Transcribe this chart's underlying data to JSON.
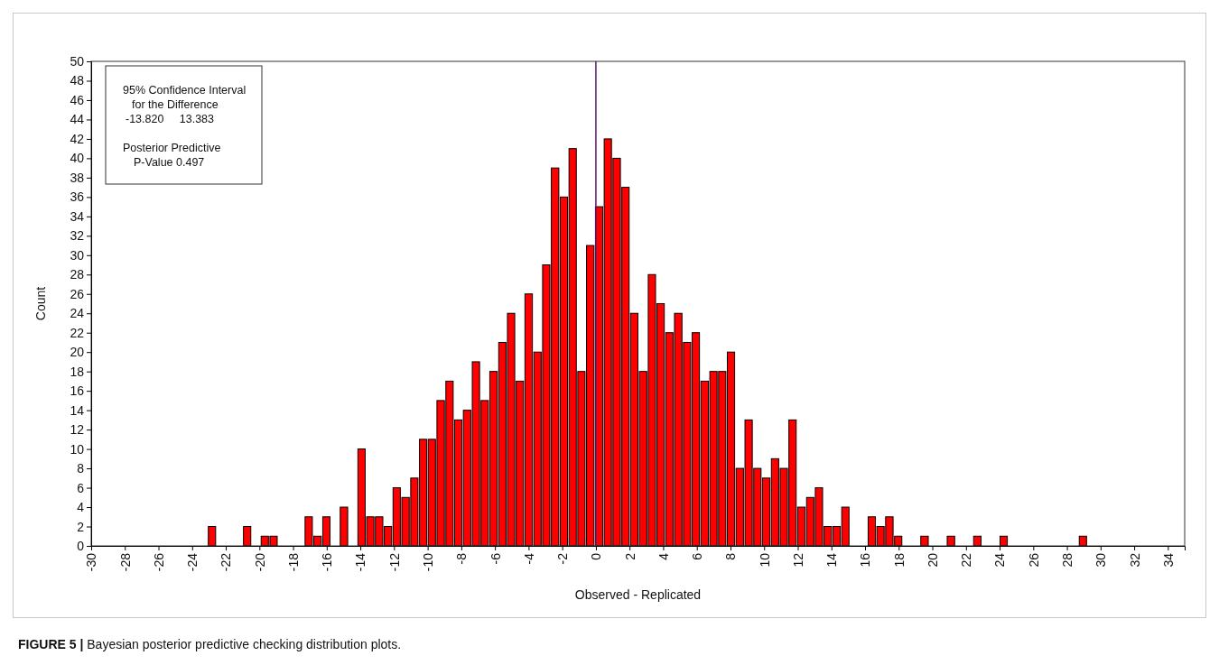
{
  "chart_data": {
    "type": "histogram",
    "xlabel": "Observed - Replicated",
    "ylabel": "Count",
    "bins": [
      -23.08,
      -22.56,
      -22.03,
      -21.51,
      -20.99,
      -20.47,
      -19.94,
      -19.42,
      -18.9,
      -18.37,
      -17.85,
      -17.33,
      -16.81,
      -16.28,
      -15.76,
      -15.24,
      -14.71,
      -14.19,
      -13.67,
      -13.15,
      -12.62,
      -12.1,
      -11.58,
      -11.05,
      -10.53,
      -10.01,
      -9.49,
      -8.96,
      -8.44,
      -7.92,
      -7.39,
      -6.87,
      -6.35,
      -5.82,
      -5.3,
      -4.78,
      -4.26,
      -3.73,
      -3.21,
      -2.69,
      -2.16,
      -1.64,
      -1.12,
      -0.6,
      -0.07,
      0.45,
      0.97,
      1.5,
      2.02,
      2.54,
      3.07,
      3.59,
      4.11,
      4.63,
      5.16,
      5.68,
      6.2,
      6.73,
      7.25,
      7.77,
      8.29,
      8.82,
      9.34,
      9.86,
      10.39,
      10.91,
      11.43,
      11.95,
      12.48,
      13.0,
      13.52,
      14.05,
      14.57,
      15.09,
      15.62,
      16.14,
      16.66,
      17.18,
      17.71,
      18.23,
      18.75,
      19.27,
      19.8,
      20.32,
      20.84,
      21.37,
      21.89,
      22.41,
      22.94,
      23.46,
      23.98,
      24.5,
      25.03,
      25.55,
      26.07,
      26.6,
      27.12,
      27.64,
      28.16,
      28.69,
      29.21
    ],
    "values": [
      2,
      0,
      0,
      0,
      2,
      0,
      1,
      1,
      0,
      0,
      0,
      3,
      1,
      3,
      0,
      4,
      0,
      10,
      3,
      3,
      2,
      6,
      5,
      7,
      11,
      11,
      15,
      17,
      13,
      14,
      19,
      15,
      18,
      21,
      24,
      17,
      26,
      20,
      29,
      39,
      36,
      41,
      18,
      31,
      35,
      42,
      40,
      37,
      24,
      18,
      28,
      25,
      22,
      24,
      21,
      22,
      17,
      18,
      18,
      20,
      8,
      13,
      8,
      7,
      9,
      8,
      13,
      4,
      5,
      6,
      2,
      2,
      4,
      0,
      0,
      3,
      2,
      3,
      1,
      0,
      0,
      1,
      0,
      0,
      1,
      0,
      0,
      1,
      0,
      0,
      1,
      0,
      0,
      0,
      0,
      0,
      0,
      0,
      0,
      1
    ],
    "color": "#ff0000",
    "xlim": [
      -30,
      35
    ],
    "xticks": [
      -30,
      -28,
      -26,
      -24,
      -22,
      -20,
      -18,
      -16,
      -14,
      -12,
      -10,
      -8,
      -6,
      -4,
      -2,
      0,
      2,
      4,
      6,
      8,
      10,
      12,
      14,
      16,
      18,
      20,
      22,
      24,
      26,
      28,
      30,
      32,
      34
    ],
    "ylim": [
      0,
      50
    ],
    "yticks": [
      0,
      2,
      4,
      6,
      8,
      10,
      12,
      14,
      16,
      18,
      20,
      22,
      24,
      26,
      28,
      30,
      32,
      34,
      36,
      38,
      40,
      42,
      44,
      46,
      48,
      50
    ],
    "grid": false,
    "ref_lines": [
      {
        "axis": "x",
        "value": 0,
        "color": "#5a1a6e"
      }
    ],
    "annotations": [
      "95% Confidence Interval",
      "for the Difference",
      "-13.820     13.383",
      "Posterior Predictive",
      "P-Value 0.497",
      "FIGURE 5 | Bayesian posterior predictive checking distribution plots."
    ]
  }
}
